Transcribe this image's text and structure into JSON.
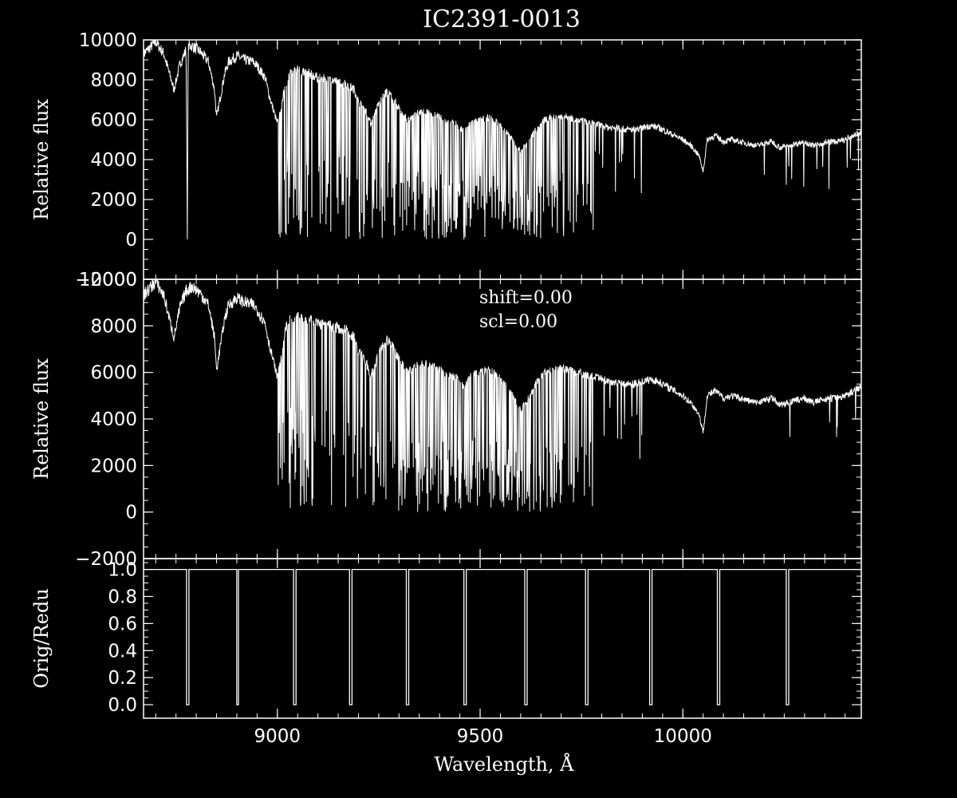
{
  "chart_data": {
    "type": "line",
    "title": "IC2391-0013",
    "xlabel": "Wavelength, Å",
    "xlim": [
      8670,
      10440
    ],
    "x_ticks": [
      9000,
      9500,
      10000
    ],
    "x_tick_labels": [
      "9000",
      "9500",
      "10000"
    ],
    "panels": [
      {
        "id": "top",
        "ylabel": "Relative flux",
        "ylim": [
          -2000,
          10000
        ],
        "y_ticks": [
          -2000,
          0,
          2000,
          4000,
          6000,
          8000,
          10000
        ],
        "y_tick_labels": [
          "−2000",
          "0",
          "2000",
          "4000",
          "6000",
          "8000",
          "10000"
        ],
        "series": [
          {
            "x": [
              8670,
              8700,
              8720,
              8745,
              8760,
              8775,
              8778,
              8780,
              8782,
              8790,
              8810,
              8830,
              8845,
              8850,
              8860,
              8870,
              8880,
              8900,
              8920,
              8940,
              8950,
              8970,
              8980,
              8990,
              9000,
              9010,
              9020,
              9030,
              9050,
              9080,
              9100,
              9130,
              9150,
              9170,
              9190,
              9200,
              9220,
              9230,
              9250,
              9270,
              9280,
              9300,
              9320,
              9330,
              9350,
              9380,
              9400,
              9420,
              9440,
              9460,
              9480,
              9500,
              9520,
              9540,
              9560,
              9580,
              9600,
              9620,
              9640,
              9660,
              9680,
              9700,
              9720,
              9740,
              9760,
              9780,
              9800,
              9820,
              9840,
              9860,
              9880,
              9900,
              9920,
              9940,
              9960,
              9980,
              10000,
              10020,
              10040,
              10050,
              10060,
              10080,
              10100,
              10120,
              10140,
              10160,
              10180,
              10200,
              10220,
              10240,
              10260,
              10280,
              10300,
              10320,
              10340,
              10360,
              10380,
              10400,
              10420,
              10440
            ],
            "y": [
              9300,
              9900,
              9300,
              7500,
              8800,
              9500,
              0,
              9500,
              9700,
              9700,
              9400,
              8900,
              7500,
              6100,
              7200,
              8300,
              8900,
              9200,
              9000,
              8900,
              8700,
              8100,
              7200,
              6500,
              5800,
              6600,
              7800,
              8300,
              8500,
              8300,
              8100,
              8000,
              7900,
              7800,
              7500,
              6900,
              6400,
              5800,
              6800,
              7400,
              7200,
              6600,
              6000,
              6100,
              6400,
              6300,
              6100,
              5900,
              5800,
              5400,
              5900,
              6000,
              6100,
              5900,
              5500,
              5000,
              4400,
              4900,
              5600,
              6000,
              6100,
              6200,
              6100,
              6000,
              5900,
              5800,
              5700,
              5600,
              5600,
              5500,
              5500,
              5600,
              5700,
              5600,
              5400,
              5200,
              5000,
              4700,
              4200,
              3400,
              5000,
              5200,
              4900,
              5000,
              4900,
              4800,
              4700,
              4800,
              4900,
              4600,
              4700,
              4800,
              4900,
              4700,
              4800,
              4900,
              4900,
              5000,
              5200,
              5400
            ],
            "color": "#ffffff"
          }
        ]
      },
      {
        "id": "middle",
        "ylabel": "Relative flux",
        "ylim": [
          -2000,
          10000
        ],
        "y_ticks": [
          -2000,
          0,
          2000,
          4000,
          6000,
          8000,
          10000
        ],
        "y_tick_labels": [
          "−2000",
          "0",
          "2000",
          "4000",
          "6000",
          "8000",
          "10000"
        ],
        "annotations": [
          "shift=0.00",
          "scl=0.00"
        ],
        "series": [
          {
            "x": [
              8670,
              8700,
              8720,
              8745,
              8760,
              8775,
              8790,
              8810,
              8830,
              8845,
              8850,
              8860,
              8870,
              8880,
              8900,
              8920,
              8940,
              8950,
              8970,
              8980,
              8990,
              9000,
              9010,
              9020,
              9030,
              9050,
              9080,
              9100,
              9130,
              9150,
              9170,
              9190,
              9200,
              9220,
              9230,
              9250,
              9270,
              9280,
              9300,
              9320,
              9330,
              9350,
              9380,
              9400,
              9420,
              9440,
              9460,
              9480,
              9500,
              9520,
              9540,
              9560,
              9580,
              9600,
              9620,
              9640,
              9660,
              9680,
              9700,
              9720,
              9740,
              9760,
              9780,
              9800,
              9820,
              9840,
              9860,
              9880,
              9900,
              9920,
              9940,
              9960,
              9980,
              10000,
              10020,
              10040,
              10050,
              10060,
              10080,
              10100,
              10120,
              10140,
              10160,
              10180,
              10200,
              10220,
              10240,
              10260,
              10280,
              10300,
              10320,
              10340,
              10360,
              10380,
              10400,
              10420,
              10440
            ],
            "y": [
              9300,
              9900,
              9300,
              7500,
              8800,
              9500,
              9700,
              9400,
              8900,
              7500,
              6100,
              7200,
              8300,
              8900,
              9200,
              9000,
              8900,
              8700,
              8100,
              7200,
              6500,
              5800,
              6600,
              7800,
              8300,
              8500,
              8300,
              8100,
              8000,
              7900,
              7800,
              7500,
              6900,
              6400,
              5800,
              6800,
              7400,
              7200,
              6600,
              6000,
              6100,
              6400,
              6300,
              6100,
              5900,
              5800,
              5400,
              5900,
              6000,
              6100,
              5900,
              5500,
              5000,
              4400,
              4900,
              5600,
              6000,
              6100,
              6200,
              6100,
              6000,
              5900,
              5800,
              5700,
              5600,
              5600,
              5500,
              5500,
              5600,
              5700,
              5600,
              5400,
              5200,
              5000,
              4700,
              4200,
              3400,
              5000,
              5200,
              4900,
              5000,
              4900,
              4800,
              4700,
              4800,
              4900,
              4600,
              4700,
              4800,
              4900,
              4700,
              4800,
              4900,
              4900,
              5000,
              5200,
              5400
            ],
            "color": "#ffffff"
          }
        ]
      },
      {
        "id": "bottom",
        "ylabel": "Orig/Redu",
        "ylim": [
          -0.1,
          1.08
        ],
        "y_ticks": [
          0.0,
          0.2,
          0.4,
          0.6,
          0.8,
          1.0
        ],
        "y_tick_labels": [
          "0.0",
          "0.2",
          "0.4",
          "0.6",
          "0.8",
          "1.0"
        ],
        "series": [
          {
            "x": [
              8670,
              8776,
              8776,
              8782,
              8782,
              8900,
              8900,
              8904,
              8904,
              9040,
              9040,
              9046,
              9046,
              9178,
              9178,
              9184,
              9184,
              9318,
              9318,
              9324,
              9324,
              9460,
              9460,
              9466,
              9466,
              9610,
              9610,
              9616,
              9616,
              9760,
              9760,
              9766,
              9766,
              9918,
              9918,
              9924,
              9924,
              10085,
              10085,
              10091,
              10091,
              10255,
              10255,
              10261,
              10261,
              10440
            ],
            "y": [
              1,
              1,
              0,
              0,
              1,
              1,
              0,
              0,
              1,
              1,
              0,
              0,
              1,
              1,
              0,
              0,
              1,
              1,
              0,
              0,
              1,
              1,
              0,
              0,
              1,
              1,
              0,
              0,
              1,
              1,
              0,
              0,
              1,
              1,
              0,
              0,
              1,
              1,
              0,
              0,
              1,
              1,
              0,
              0,
              1,
              1
            ],
            "color": "#ffffff"
          }
        ]
      }
    ]
  }
}
